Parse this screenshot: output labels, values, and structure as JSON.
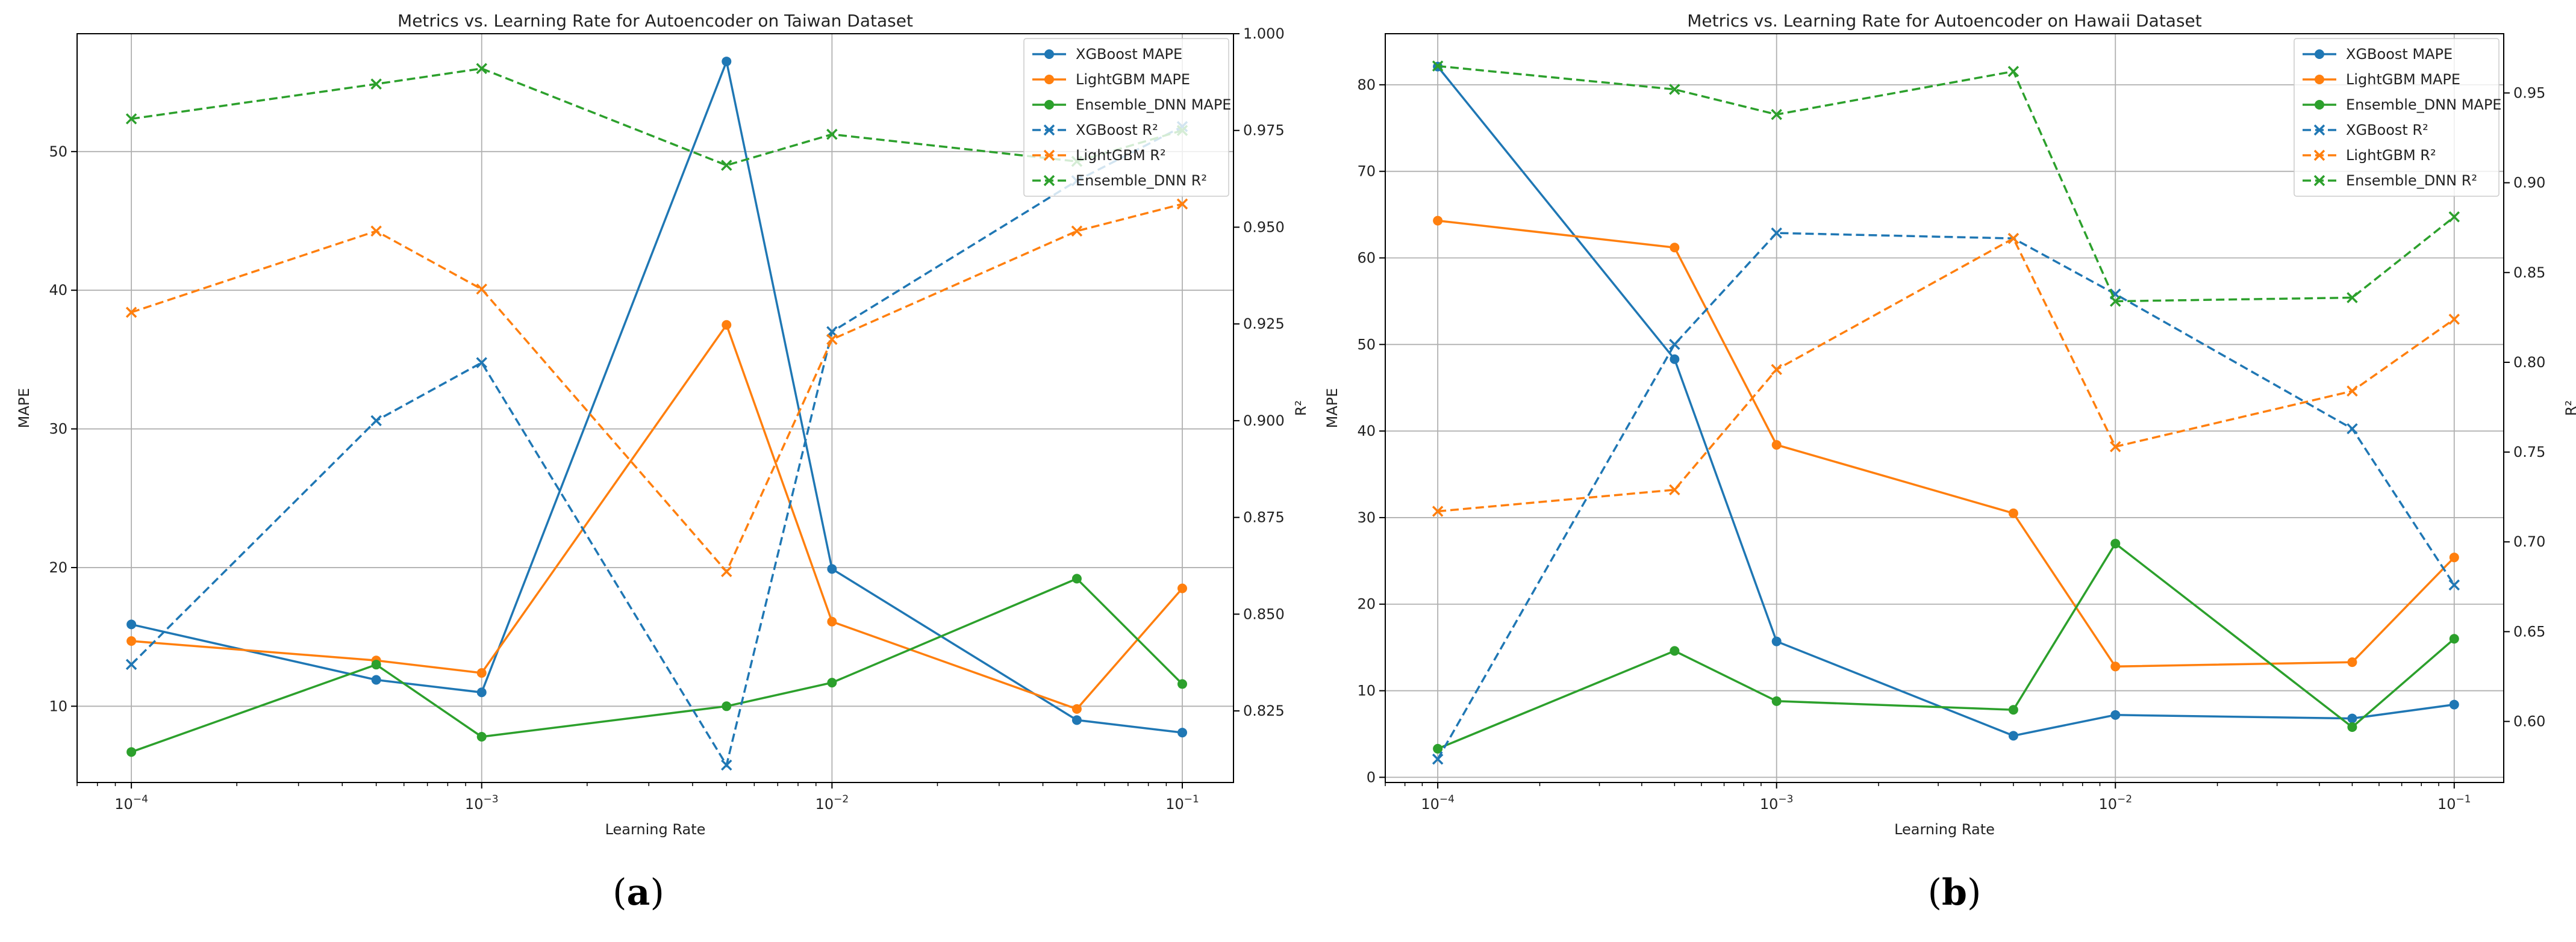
{
  "chart_data": [
    {
      "type": "line",
      "panel_label": "(a)",
      "title": "Metrics vs. Learning Rate for Autoencoder on Taiwan Dataset",
      "xlabel": "Learning Rate",
      "ylabel": "MAPE",
      "y2label": "R²",
      "xscale": "log",
      "xlim": [
        7e-05,
        0.14
      ],
      "ylim": [
        4.5,
        58.5
      ],
      "y2lim": [
        0.8065,
        1.0
      ],
      "grid": true,
      "legend_position": "top-right",
      "x": [
        0.0001,
        0.0005,
        0.001,
        0.005,
        0.01,
        0.05,
        0.1
      ],
      "xticks": [
        0.0001,
        0.001,
        0.01,
        0.1
      ],
      "xtick_labels": [
        [
          "10",
          "−4"
        ],
        [
          "10",
          "−3"
        ],
        [
          "10",
          "−2"
        ],
        [
          "10",
          "−1"
        ]
      ],
      "yticks": [
        10,
        20,
        30,
        40,
        50
      ],
      "ytick_labels": [
        "10",
        "20",
        "30",
        "40",
        "50"
      ],
      "y2ticks": [
        0.825,
        0.85,
        0.875,
        0.9,
        0.925,
        0.95,
        0.975,
        1.0
      ],
      "y2tick_labels": [
        "0.825",
        "0.850",
        "0.875",
        "0.900",
        "0.925",
        "0.950",
        "0.975",
        "1.000"
      ],
      "series": [
        {
          "name": "XGBoost MAPE",
          "axis": "left",
          "style": "solid",
          "marker": "circle",
          "color": "#1f77b4",
          "values": [
            15.9,
            11.9,
            11.0,
            56.5,
            19.9,
            9.0,
            8.1
          ]
        },
        {
          "name": "LightGBM MAPE",
          "axis": "left",
          "style": "solid",
          "marker": "circle",
          "color": "#ff7f0e",
          "values": [
            14.7,
            13.3,
            12.4,
            37.5,
            16.1,
            9.8,
            18.5
          ]
        },
        {
          "name": "Ensemble_DNN MAPE",
          "axis": "left",
          "style": "solid",
          "marker": "circle",
          "color": "#2ca02c",
          "values": [
            6.7,
            13.0,
            7.8,
            10.0,
            11.7,
            19.2,
            11.6
          ]
        },
        {
          "name": "XGBoost R²",
          "axis": "right",
          "style": "dashed",
          "marker": "x",
          "color": "#1f77b4",
          "values": [
            0.837,
            0.9,
            0.915,
            0.811,
            0.923,
            0.962,
            0.976
          ]
        },
        {
          "name": "LightGBM R²",
          "axis": "right",
          "style": "dashed",
          "marker": "x",
          "color": "#ff7f0e",
          "values": [
            0.928,
            0.949,
            0.934,
            0.861,
            0.921,
            0.949,
            0.956
          ]
        },
        {
          "name": "Ensemble_DNN R²",
          "axis": "right",
          "style": "dashed",
          "marker": "x",
          "color": "#2ca02c",
          "values": [
            0.978,
            0.987,
            0.991,
            0.966,
            0.974,
            0.967,
            0.975
          ]
        }
      ]
    },
    {
      "type": "line",
      "panel_label": "(b)",
      "title": "Metrics vs. Learning Rate for Autoencoder on Hawaii Dataset",
      "xlabel": "Learning Rate",
      "ylabel": "MAPE",
      "y2label": "R²",
      "xscale": "log",
      "xlim": [
        7e-05,
        0.14
      ],
      "ylim": [
        -0.6,
        85.9
      ],
      "y2lim": [
        0.566,
        0.983
      ],
      "grid": true,
      "legend_position": "top-right",
      "x": [
        0.0001,
        0.0005,
        0.001,
        0.005,
        0.01,
        0.05,
        0.1
      ],
      "xticks": [
        0.0001,
        0.001,
        0.01,
        0.1
      ],
      "xtick_labels": [
        [
          "10",
          "−4"
        ],
        [
          "10",
          "−3"
        ],
        [
          "10",
          "−2"
        ],
        [
          "10",
          "−1"
        ]
      ],
      "yticks": [
        0,
        10,
        20,
        30,
        40,
        50,
        60,
        70,
        80
      ],
      "ytick_labels": [
        "0",
        "10",
        "20",
        "30",
        "40",
        "50",
        "60",
        "70",
        "80"
      ],
      "y2ticks": [
        0.6,
        0.65,
        0.7,
        0.75,
        0.8,
        0.85,
        0.9,
        0.95
      ],
      "y2tick_labels": [
        "0.60",
        "0.65",
        "0.70",
        "0.75",
        "0.80",
        "0.85",
        "0.90",
        "0.95"
      ],
      "series": [
        {
          "name": "XGBoost MAPE",
          "axis": "left",
          "style": "solid",
          "marker": "circle",
          "color": "#1f77b4",
          "values": [
            82.1,
            48.3,
            15.7,
            4.8,
            7.2,
            6.8,
            8.4
          ]
        },
        {
          "name": "LightGBM MAPE",
          "axis": "left",
          "style": "solid",
          "marker": "circle",
          "color": "#ff7f0e",
          "values": [
            64.3,
            61.2,
            38.4,
            30.5,
            12.8,
            13.3,
            25.4
          ]
        },
        {
          "name": "Ensemble_DNN MAPE",
          "axis": "left",
          "style": "solid",
          "marker": "circle",
          "color": "#2ca02c",
          "values": [
            3.3,
            14.6,
            8.8,
            7.8,
            27.0,
            5.8,
            16.0
          ]
        },
        {
          "name": "XGBoost R²",
          "axis": "right",
          "style": "dashed",
          "marker": "x",
          "color": "#1f77b4",
          "values": [
            0.579,
            0.81,
            0.872,
            0.869,
            0.838,
            0.763,
            0.676
          ]
        },
        {
          "name": "LightGBM R²",
          "axis": "right",
          "style": "dashed",
          "marker": "x",
          "color": "#ff7f0e",
          "values": [
            0.717,
            0.729,
            0.796,
            0.869,
            0.753,
            0.784,
            0.824
          ]
        },
        {
          "name": "Ensemble_DNN R²",
          "axis": "right",
          "style": "dashed",
          "marker": "x",
          "color": "#2ca02c",
          "values": [
            0.965,
            0.952,
            0.938,
            0.962,
            0.834,
            0.836,
            0.881
          ]
        }
      ]
    }
  ]
}
